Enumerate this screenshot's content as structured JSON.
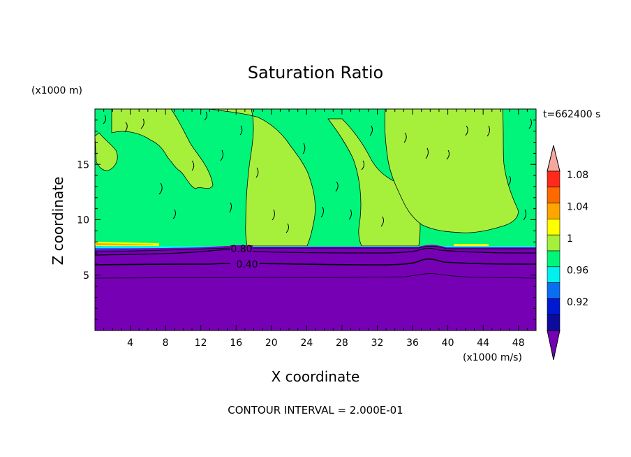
{
  "chart_data": {
    "type": "heatmap",
    "title": "Saturation Ratio",
    "xlabel": "X coordinate",
    "ylabel": "Z coordinate",
    "x_unit": "(x1000 m/s)",
    "y_unit": "(x1000 m)",
    "time_label": "t=662400 s",
    "footer": "CONTOUR INTERVAL = 2.000E-01",
    "xlim": [
      0,
      50
    ],
    "ylim": [
      0,
      20
    ],
    "x_ticks": [
      "4",
      "8",
      "12",
      "16",
      "20",
      "24",
      "28",
      "32",
      "36",
      "40",
      "44",
      "48"
    ],
    "y_ticks": [
      "5",
      "10",
      "15"
    ],
    "contour_labels": [
      "0.80",
      "0.40"
    ],
    "colorbar": {
      "tick_labels": [
        "1.08",
        "1.04",
        "1",
        "0.96",
        "0.92"
      ],
      "levels": [
        {
          "from": 1.1,
          "to": null,
          "color": "#f6a8a0"
        },
        {
          "from": 1.08,
          "to": 1.1,
          "color": "#ff2a1a"
        },
        {
          "from": 1.06,
          "to": 1.08,
          "color": "#ff6a00"
        },
        {
          "from": 1.04,
          "to": 1.06,
          "color": "#ffa500"
        },
        {
          "from": 1.02,
          "to": 1.04,
          "color": "#ffff00"
        },
        {
          "from": 1.0,
          "to": 1.02,
          "color": "#a6f03c"
        },
        {
          "from": 0.98,
          "to": 1.0,
          "color": "#00f57a"
        },
        {
          "from": 0.96,
          "to": 0.98,
          "color": "#00f0f0"
        },
        {
          "from": 0.94,
          "to": 0.96,
          "color": "#0a6ef5"
        },
        {
          "from": 0.92,
          "to": 0.94,
          "color": "#0018d2"
        },
        {
          "from": 0.9,
          "to": 0.92,
          "color": "#0c0c9c"
        },
        {
          "from": null,
          "to": 0.9,
          "color": "#7600b4"
        }
      ]
    },
    "regions": {
      "dry_lower_layer_top_km": 7.6,
      "cloud_layer_top_km": 20,
      "upper_layer_dominant_value": 1.0,
      "lower_layer_dominant_value": 0.9
    }
  }
}
